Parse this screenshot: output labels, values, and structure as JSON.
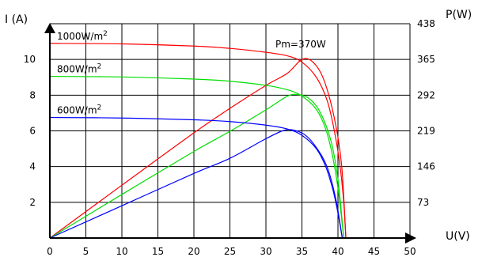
{
  "chart_data": {
    "type": "line",
    "x_label": "U(V)",
    "y_left_label": "I (A)",
    "y_right_label": "P(W)",
    "x_ticks": [
      0,
      5,
      10,
      15,
      20,
      25,
      30,
      35,
      40,
      45,
      50
    ],
    "y_left_ticks": [
      2,
      4,
      6,
      8,
      10
    ],
    "y_right_ticks": [
      73,
      146,
      219,
      292,
      365,
      438
    ],
    "xlim": [
      0,
      50
    ],
    "y_left_lim": [
      0,
      12
    ],
    "y_right_lim": [
      0,
      438
    ],
    "grid": true,
    "annotation": "Pm=370W",
    "series": [
      {
        "name": "1000W/m²",
        "label_main": "1000W/m",
        "label_sup": "2",
        "color": "#ff0000",
        "iv": [
          [
            0,
            10.9
          ],
          [
            10,
            10.87
          ],
          [
            20,
            10.75
          ],
          [
            25,
            10.62
          ],
          [
            30,
            10.4
          ],
          [
            33,
            10.2
          ],
          [
            35,
            9.85
          ],
          [
            37,
            9.0
          ],
          [
            38.5,
            7.7
          ],
          [
            39.5,
            6.0
          ],
          [
            40.3,
            4.0
          ],
          [
            40.8,
            2.0
          ],
          [
            41.1,
            0
          ]
        ],
        "pv": [
          [
            0,
            0
          ],
          [
            10,
            108
          ],
          [
            20,
            215
          ],
          [
            25,
            265
          ],
          [
            30,
            312
          ],
          [
            33,
            337
          ],
          [
            35,
            365
          ],
          [
            36.5,
            360
          ],
          [
            38,
            325
          ],
          [
            39.5,
            245
          ],
          [
            40.5,
            150
          ],
          [
            41.1,
            0
          ]
        ]
      },
      {
        "name": "800W/m²",
        "label_main": "800W/m",
        "label_sup": "2",
        "color": "#00dd00",
        "iv": [
          [
            0,
            9.05
          ],
          [
            10,
            9.02
          ],
          [
            20,
            8.9
          ],
          [
            25,
            8.78
          ],
          [
            30,
            8.55
          ],
          [
            33,
            8.3
          ],
          [
            35,
            7.95
          ],
          [
            37,
            7.2
          ],
          [
            38.3,
            6.1
          ],
          [
            39.3,
            4.5
          ],
          [
            40.1,
            2.5
          ],
          [
            40.8,
            0
          ]
        ],
        "pv": [
          [
            0,
            0
          ],
          [
            10,
            89
          ],
          [
            20,
            177
          ],
          [
            25,
            218
          ],
          [
            30,
            262
          ],
          [
            33,
            290
          ],
          [
            34.5,
            293
          ],
          [
            36,
            285
          ],
          [
            37.5,
            258
          ],
          [
            39,
            200
          ],
          [
            40,
            120
          ],
          [
            40.8,
            0
          ]
        ]
      },
      {
        "name": "600W/m²",
        "label_main": "600W/m",
        "label_sup": "2",
        "color": "#0000ff",
        "iv": [
          [
            0,
            6.75
          ],
          [
            10,
            6.72
          ],
          [
            20,
            6.62
          ],
          [
            25,
            6.52
          ],
          [
            30,
            6.32
          ],
          [
            33,
            6.1
          ],
          [
            35,
            5.75
          ],
          [
            37,
            5.0
          ],
          [
            38.3,
            4.0
          ],
          [
            39.3,
            2.7
          ],
          [
            40.0,
            1.4
          ],
          [
            40.6,
            0
          ]
        ],
        "pv": [
          [
            0,
            0
          ],
          [
            10,
            66
          ],
          [
            20,
            132
          ],
          [
            25,
            163
          ],
          [
            30,
            203
          ],
          [
            32.5,
            220
          ],
          [
            34,
            220
          ],
          [
            35.5,
            210
          ],
          [
            37,
            185
          ],
          [
            38.5,
            145
          ],
          [
            39.7,
            80
          ],
          [
            40.6,
            0
          ]
        ]
      }
    ]
  }
}
